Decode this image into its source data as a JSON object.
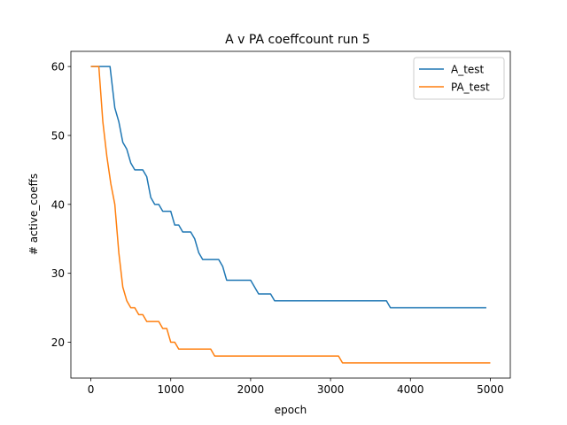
{
  "chart_data": {
    "type": "line",
    "title": "A v PA coeffcount run 5",
    "xlabel": "epoch",
    "ylabel": "# active_coeffs",
    "xlim": [
      -250,
      5250
    ],
    "ylim": [
      14.8,
      62.2
    ],
    "xticks": [
      0,
      1000,
      2000,
      3000,
      4000,
      5000
    ],
    "yticks": [
      20,
      30,
      40,
      50,
      60
    ],
    "grid": false,
    "legend_position": "top-right",
    "series": [
      {
        "name": "A_test",
        "color": "#1f77b4",
        "x": [
          0,
          100,
          150,
          200,
          240,
          300,
          350,
          400,
          450,
          500,
          550,
          600,
          650,
          700,
          750,
          800,
          850,
          900,
          950,
          1000,
          1050,
          1100,
          1150,
          1200,
          1250,
          1300,
          1350,
          1400,
          1450,
          1500,
          1550,
          1600,
          1650,
          1700,
          1750,
          1800,
          1850,
          1900,
          1950,
          2000,
          2050,
          2100,
          2150,
          2200,
          2250,
          2300,
          2350,
          2400,
          2500,
          3000,
          3500,
          3700,
          3750,
          3800,
          4000,
          4500,
          4950
        ],
        "values": [
          60,
          60,
          60,
          60,
          60,
          54,
          52,
          49,
          48,
          46,
          45,
          45,
          45,
          44,
          41,
          40,
          40,
          39,
          39,
          39,
          37,
          37,
          36,
          36,
          36,
          35,
          33,
          32,
          32,
          32,
          32,
          32,
          31,
          29,
          29,
          29,
          29,
          29,
          29,
          29,
          28,
          27,
          27,
          27,
          27,
          26,
          26,
          26,
          26,
          26,
          26,
          26,
          25,
          25,
          25,
          25,
          25
        ]
      },
      {
        "name": "PA_test",
        "color": "#ff7f0e",
        "x": [
          0,
          50,
          100,
          150,
          200,
          250,
          300,
          350,
          400,
          450,
          500,
          550,
          600,
          650,
          700,
          750,
          800,
          850,
          900,
          950,
          1000,
          1050,
          1100,
          1150,
          1200,
          1300,
          1400,
          1500,
          1550,
          1600,
          2000,
          2500,
          3000,
          3100,
          3150,
          3200,
          3500,
          4000,
          4500,
          5000
        ],
        "values": [
          60,
          60,
          60,
          52,
          47,
          43,
          40,
          33,
          28,
          26,
          25,
          25,
          24,
          24,
          23,
          23,
          23,
          23,
          22,
          22,
          20,
          20,
          19,
          19,
          19,
          19,
          19,
          19,
          18,
          18,
          18,
          18,
          18,
          18,
          17,
          17,
          17,
          17,
          17,
          17
        ]
      }
    ]
  }
}
